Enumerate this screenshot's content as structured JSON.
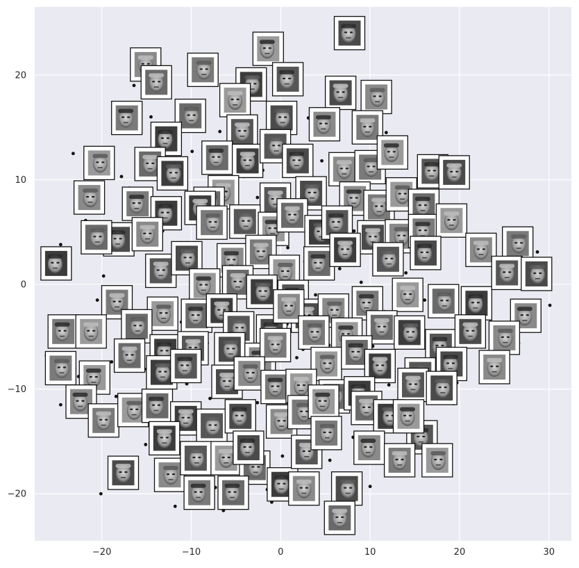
{
  "chart_data": {
    "type": "scatter",
    "title": "",
    "xlabel": "",
    "ylabel": "",
    "xlim": [
      -27.5,
      32.5
    ],
    "ylim": [
      -24.5,
      26.5
    ],
    "grid": true,
    "x_ticks": [
      -20,
      -10,
      0,
      10,
      20,
      30
    ],
    "y_ticks": [
      -20,
      -10,
      0,
      10,
      20
    ],
    "x_tick_labels": [
      "−20",
      "−10",
      "0",
      "10",
      "20",
      "30"
    ],
    "y_tick_labels": [
      "−20",
      "−10",
      "0",
      "10",
      "20"
    ],
    "colors": {
      "background": "#eaeaf2",
      "grid": "#ffffff",
      "point": "#111111",
      "frame": "#111111"
    },
    "points": [
      [
        8.5,
        24.2
      ],
      [
        -10.2,
        21.4
      ],
      [
        -16.4,
        19.0
      ],
      [
        -18.2,
        16.4
      ],
      [
        -14.5,
        16.0
      ],
      [
        -11.5,
        14.1
      ],
      [
        -6.8,
        14.6
      ],
      [
        -3.5,
        15.8
      ],
      [
        -1.2,
        15.0
      ],
      [
        3.1,
        15.9
      ],
      [
        5.6,
        13.9
      ],
      [
        8.7,
        13.8
      ],
      [
        11.8,
        14.5
      ],
      [
        -23.2,
        12.5
      ],
      [
        -17.8,
        10.3
      ],
      [
        -16.9,
        9.2
      ],
      [
        -9.9,
        12.7
      ],
      [
        -7.3,
        13.1
      ],
      [
        -5.5,
        12.0
      ],
      [
        -4.1,
        10.3
      ],
      [
        -2.0,
        10.9
      ],
      [
        0.3,
        12.4
      ],
      [
        2.7,
        10.2
      ],
      [
        4.6,
        11.8
      ],
      [
        6.6,
        10.3
      ],
      [
        9.5,
        12.0
      ],
      [
        13.1,
        11.3
      ],
      [
        15.5,
        9.8
      ],
      [
        18.5,
        10.7
      ],
      [
        -21.8,
        6.1
      ],
      [
        -18.2,
        5.6
      ],
      [
        -13.2,
        5.1
      ],
      [
        -11.7,
        8.2
      ],
      [
        -8.8,
        5.4
      ],
      [
        -6.4,
        7.1
      ],
      [
        -3.2,
        5.2
      ],
      [
        -1.1,
        6.7
      ],
      [
        1.3,
        5.6
      ],
      [
        3.7,
        4.4
      ],
      [
        5.9,
        6.4
      ],
      [
        8.2,
        5.1
      ],
      [
        10.7,
        6.2
      ],
      [
        13.4,
        4.7
      ],
      [
        15.6,
        6.0
      ],
      [
        19.1,
        4.8
      ],
      [
        -24.6,
        3.8
      ],
      [
        -19.8,
        0.8
      ],
      [
        -14.6,
        1.5
      ],
      [
        -11.8,
        3.2
      ],
      [
        -8.5,
        1.1
      ],
      [
        -5.6,
        2.5
      ],
      [
        -3.6,
        0.8
      ],
      [
        -1.4,
        2.9
      ],
      [
        1.1,
        0.6
      ],
      [
        2.7,
        2.2
      ],
      [
        4.4,
        0.9
      ],
      [
        6.6,
        1.5
      ],
      [
        9.0,
        0.2
      ],
      [
        11.4,
        2.3
      ],
      [
        14.0,
        1.1
      ],
      [
        16.4,
        2.7
      ],
      [
        21.6,
        2.3
      ],
      [
        24.6,
        1.7
      ],
      [
        28.7,
        3.1
      ],
      [
        -17.3,
        -1.6
      ],
      [
        -14.9,
        -0.1
      ],
      [
        -12.4,
        -2.1
      ],
      [
        -9.4,
        -1.2
      ],
      [
        -6.9,
        -0.6
      ],
      [
        -3.6,
        -1.9
      ],
      [
        -0.7,
        -0.2
      ],
      [
        1.6,
        -2.1
      ],
      [
        3.9,
        -1.0
      ],
      [
        6.2,
        -2.8
      ],
      [
        8.8,
        -1.4
      ],
      [
        11.6,
        -2.6
      ],
      [
        13.5,
        -0.6
      ],
      [
        16.1,
        -1.5
      ],
      [
        18.9,
        -0.3
      ],
      [
        21.2,
        -1.4
      ],
      [
        23.8,
        -0.2
      ],
      [
        30.1,
        -2.0
      ],
      [
        -23.9,
        -4.4
      ],
      [
        -20.5,
        -4.8
      ],
      [
        -16.8,
        -3.7
      ],
      [
        -14.0,
        -5.4
      ],
      [
        -11.1,
        -3.6
      ],
      [
        -8.2,
        -5.6
      ],
      [
        -5.6,
        -4.2
      ],
      [
        -2.4,
        -5.0
      ],
      [
        0.7,
        -3.8
      ],
      [
        3.0,
        -4.3
      ],
      [
        5.4,
        -5.8
      ],
      [
        7.8,
        -4.7
      ],
      [
        10.3,
        -5.9
      ],
      [
        12.5,
        -3.3
      ],
      [
        14.8,
        -4.9
      ],
      [
        17.9,
        -6.3
      ],
      [
        20.3,
        -4.1
      ],
      [
        23.5,
        -3.6
      ],
      [
        26.6,
        -5.6
      ],
      [
        -26.2,
        -6.8
      ],
      [
        -22.6,
        -8.8
      ],
      [
        -18.9,
        -7.4
      ],
      [
        -15.2,
        -8.1
      ],
      [
        -12.5,
        -6.4
      ],
      [
        -9.0,
        -7.6
      ],
      [
        -6.8,
        -9.3
      ],
      [
        -3.9,
        -7.9
      ],
      [
        -0.8,
        -9.1
      ],
      [
        1.8,
        -7.0
      ],
      [
        4.5,
        -8.8
      ],
      [
        7.1,
        -7.6
      ],
      [
        9.6,
        -8.4
      ],
      [
        12.1,
        -9.6
      ],
      [
        14.6,
        -7.8
      ],
      [
        17.1,
        -8.6
      ],
      [
        19.7,
        -9.4
      ],
      [
        23.5,
        -7.1
      ],
      [
        -24.6,
        -11.5
      ],
      [
        -21.5,
        -12.6
      ],
      [
        -18.4,
        -10.7
      ],
      [
        -15.5,
        -11.8
      ],
      [
        -12.8,
        -10.0
      ],
      [
        -10.1,
        -12.4
      ],
      [
        -7.9,
        -10.9
      ],
      [
        -5.2,
        -12.7
      ],
      [
        -2.6,
        -11.3
      ],
      [
        0.0,
        -12.3
      ],
      [
        2.3,
        -10.5
      ],
      [
        4.8,
        -11.9
      ],
      [
        6.9,
        -10.1
      ],
      [
        9.2,
        -11.6
      ],
      [
        11.0,
        -13.1
      ],
      [
        13.8,
        -12.2
      ],
      [
        16.1,
        -10.8
      ],
      [
        19.3,
        -11.4
      ],
      [
        -18.5,
        -14.2
      ],
      [
        -15.1,
        -15.3
      ],
      [
        -12.2,
        -13.6
      ],
      [
        -9.6,
        -15.7
      ],
      [
        -7.0,
        -14.3
      ],
      [
        -4.5,
        -16.2
      ],
      [
        -2.1,
        -14.8
      ],
      [
        0.2,
        -16.4
      ],
      [
        2.9,
        -15.1
      ],
      [
        5.5,
        -16.8
      ],
      [
        8.1,
        -14.6
      ],
      [
        10.4,
        -15.9
      ],
      [
        13.7,
        -16.6
      ],
      [
        17.0,
        -15.4
      ],
      [
        -17.5,
        -18.0
      ],
      [
        -12.7,
        -18.9
      ],
      [
        -9.7,
        -17.2
      ],
      [
        -7.3,
        -19.4
      ],
      [
        -4.2,
        -18.1
      ],
      [
        -1.5,
        -19.6
      ],
      [
        1.3,
        -17.5
      ],
      [
        4.0,
        -18.8
      ],
      [
        7.4,
        -18.2
      ],
      [
        10.0,
        -19.3
      ],
      [
        -20.1,
        -20.0
      ],
      [
        -11.8,
        -21.2
      ],
      [
        -6.4,
        -21.6
      ],
      [
        -1.0,
        -20.8
      ],
      [
        7.0,
        -22.4
      ],
      [
        -13.5,
        4.6
      ],
      [
        -9.3,
        8.9
      ],
      [
        -2.6,
        8.3
      ],
      [
        1.9,
        7.8
      ],
      [
        7.6,
        8.8
      ],
      [
        12.5,
        8.4
      ],
      [
        -16.0,
        -5.6
      ],
      [
        -6.5,
        -6.9
      ],
      [
        2.5,
        -6.2
      ],
      [
        6.6,
        -13.1
      ],
      [
        -3.5,
        -3.1
      ],
      [
        0.8,
        3.5
      ],
      [
        3.4,
        -2.6
      ],
      [
        -10.5,
        -9.5
      ],
      [
        13.1,
        -5.8
      ],
      [
        -4.6,
        4.6
      ],
      [
        5.0,
        3.2
      ],
      [
        -8.2,
        -2.8
      ],
      [
        10.9,
        -1.0
      ],
      [
        -13.8,
        11.0
      ],
      [
        -1.8,
        -6.6
      ],
      [
        4.1,
        -9.9
      ],
      [
        -20.5,
        -1.5
      ],
      [
        17.4,
        3.9
      ],
      [
        -6.2,
        16.9
      ],
      [
        1.9,
        20.3
      ]
    ],
    "faces": [
      [
        7.7,
        24.0
      ],
      [
        -15.1,
        21.0
      ],
      [
        -8.7,
        20.5
      ],
      [
        -1.4,
        22.5
      ],
      [
        -13.9,
        19.3
      ],
      [
        -3.3,
        19.1
      ],
      [
        0.8,
        19.6
      ],
      [
        6.7,
        18.3
      ],
      [
        10.7,
        17.9
      ],
      [
        -17.2,
        15.9
      ],
      [
        -5.1,
        17.6
      ],
      [
        -10.1,
        16.1
      ],
      [
        -12.8,
        13.9
      ],
      [
        -4.3,
        14.6
      ],
      [
        0.1,
        15.9
      ],
      [
        4.9,
        15.3
      ],
      [
        9.7,
        15.0
      ],
      [
        -20.3,
        11.6
      ],
      [
        -7.1,
        12.1
      ],
      [
        -3.7,
        11.8
      ],
      [
        -0.6,
        13.2
      ],
      [
        1.9,
        11.8
      ],
      [
        7.1,
        11.0
      ],
      [
        10.0,
        11.2
      ],
      [
        12.5,
        12.6
      ],
      [
        -14.6,
        11.5
      ],
      [
        -12.1,
        10.6
      ],
      [
        17.0,
        10.8
      ],
      [
        19.4,
        10.7
      ],
      [
        -21.4,
        8.3
      ],
      [
        -16.0,
        7.7
      ],
      [
        -6.4,
        8.8
      ],
      [
        -8.0,
        7.7
      ],
      [
        -12.8,
        6.8
      ],
      [
        -0.6,
        8.1
      ],
      [
        3.4,
        8.7
      ],
      [
        8.3,
        8.2
      ],
      [
        11.0,
        7.4
      ],
      [
        13.5,
        8.6
      ],
      [
        16.0,
        7.5
      ],
      [
        -9.0,
        7.3
      ],
      [
        -4.0,
        6.0
      ],
      [
        -18.1,
        4.3
      ],
      [
        -14.9,
        4.8
      ],
      [
        -7.7,
        5.9
      ],
      [
        -0.8,
        5.3
      ],
      [
        1.3,
        6.6
      ],
      [
        4.4,
        5.0
      ],
      [
        6.3,
        5.9
      ],
      [
        10.3,
        4.5
      ],
      [
        13.4,
        4.6
      ],
      [
        16.0,
        5.1
      ],
      [
        19.1,
        6.1
      ],
      [
        -20.6,
        4.5
      ],
      [
        -25.1,
        2.0
      ],
      [
        -13.4,
        1.3
      ],
      [
        -10.5,
        2.5
      ],
      [
        -5.4,
        2.3
      ],
      [
        -2.2,
        3.1
      ],
      [
        0.4,
        1.2
      ],
      [
        4.3,
        2.0
      ],
      [
        7.2,
        3.3
      ],
      [
        12.0,
        2.4
      ],
      [
        16.2,
        3.0
      ],
      [
        22.4,
        3.3
      ],
      [
        26.5,
        3.9
      ],
      [
        -8.5,
        -0.1
      ],
      [
        -4.8,
        0.2
      ],
      [
        -2.1,
        -0.7
      ],
      [
        1.4,
        -1.2
      ],
      [
        2.9,
        -3.0
      ],
      [
        5.9,
        -2.5
      ],
      [
        9.7,
        -1.8
      ],
      [
        14.2,
        -1.0
      ],
      [
        18.2,
        -1.6
      ],
      [
        21.9,
        -1.8
      ],
      [
        25.3,
        1.1
      ],
      [
        28.6,
        1.0
      ],
      [
        27.4,
        -3.0
      ],
      [
        -18.3,
        -1.7
      ],
      [
        -13.2,
        -2.8
      ],
      [
        -9.4,
        -3.0
      ],
      [
        -6.6,
        -2.5
      ],
      [
        -4.7,
        -4.2
      ],
      [
        -1.0,
        -4.5
      ],
      [
        0.9,
        -2.1
      ],
      [
        3.7,
        -4.6
      ],
      [
        7.4,
        -4.8
      ],
      [
        11.3,
        -4.1
      ],
      [
        14.4,
        -4.6
      ],
      [
        17.9,
        -5.9
      ],
      [
        21.2,
        -4.5
      ],
      [
        25.0,
        -5.1
      ],
      [
        -24.3,
        -4.5
      ],
      [
        -21.2,
        -4.5
      ],
      [
        -16.1,
        -4.0
      ],
      [
        -12.9,
        -6.4
      ],
      [
        -9.8,
        -6.1
      ],
      [
        -5.7,
        -6.2
      ],
      [
        -2.3,
        -7.2
      ],
      [
        -0.6,
        -5.8
      ],
      [
        5.1,
        -7.6
      ],
      [
        8.5,
        -6.5
      ],
      [
        11.1,
        -7.8
      ],
      [
        15.6,
        -8.6
      ],
      [
        19.1,
        -7.6
      ],
      [
        23.9,
        -7.9
      ],
      [
        -24.6,
        -8.0
      ],
      [
        -20.8,
        -8.9
      ],
      [
        -16.9,
        -6.8
      ],
      [
        -13.3,
        -8.4
      ],
      [
        -10.6,
        -7.8
      ],
      [
        -6.0,
        -9.3
      ],
      [
        -3.5,
        -8.5
      ],
      [
        -0.5,
        -9.8
      ],
      [
        2.3,
        -9.7
      ],
      [
        6.0,
        -10.7
      ],
      [
        8.8,
        -10.4
      ],
      [
        14.8,
        -9.6
      ],
      [
        18.0,
        -9.9
      ],
      [
        -22.3,
        -11.2
      ],
      [
        -19.8,
        -13.0
      ],
      [
        -16.5,
        -12.0
      ],
      [
        -13.8,
        -11.6
      ],
      [
        -10.6,
        -12.8
      ],
      [
        -7.7,
        -13.5
      ],
      [
        -4.5,
        -12.6
      ],
      [
        0.1,
        -13.1
      ],
      [
        2.5,
        -12.2
      ],
      [
        4.8,
        -11.2
      ],
      [
        9.6,
        -11.8
      ],
      [
        12.1,
        -12.6
      ],
      [
        15.8,
        -14.6
      ],
      [
        -17.6,
        -18.0
      ],
      [
        -12.4,
        -18.2
      ],
      [
        -9.1,
        -19.9
      ],
      [
        -6.1,
        -16.6
      ],
      [
        -2.9,
        -17.5
      ],
      [
        0.2,
        -19.1
      ],
      [
        2.9,
        -16.0
      ],
      [
        7.4,
        -19.5
      ],
      [
        9.9,
        -15.6
      ],
      [
        13.3,
        -16.8
      ],
      [
        17.5,
        -16.8
      ],
      [
        -5.3,
        -19.9
      ],
      [
        -13.0,
        -14.7
      ],
      [
        -9.5,
        -16.6
      ],
      [
        -3.6,
        -15.6
      ],
      [
        2.6,
        -19.5
      ],
      [
        5.1,
        -14.2
      ],
      [
        14.3,
        -12.6
      ],
      [
        6.6,
        -22.3
      ]
    ]
  }
}
